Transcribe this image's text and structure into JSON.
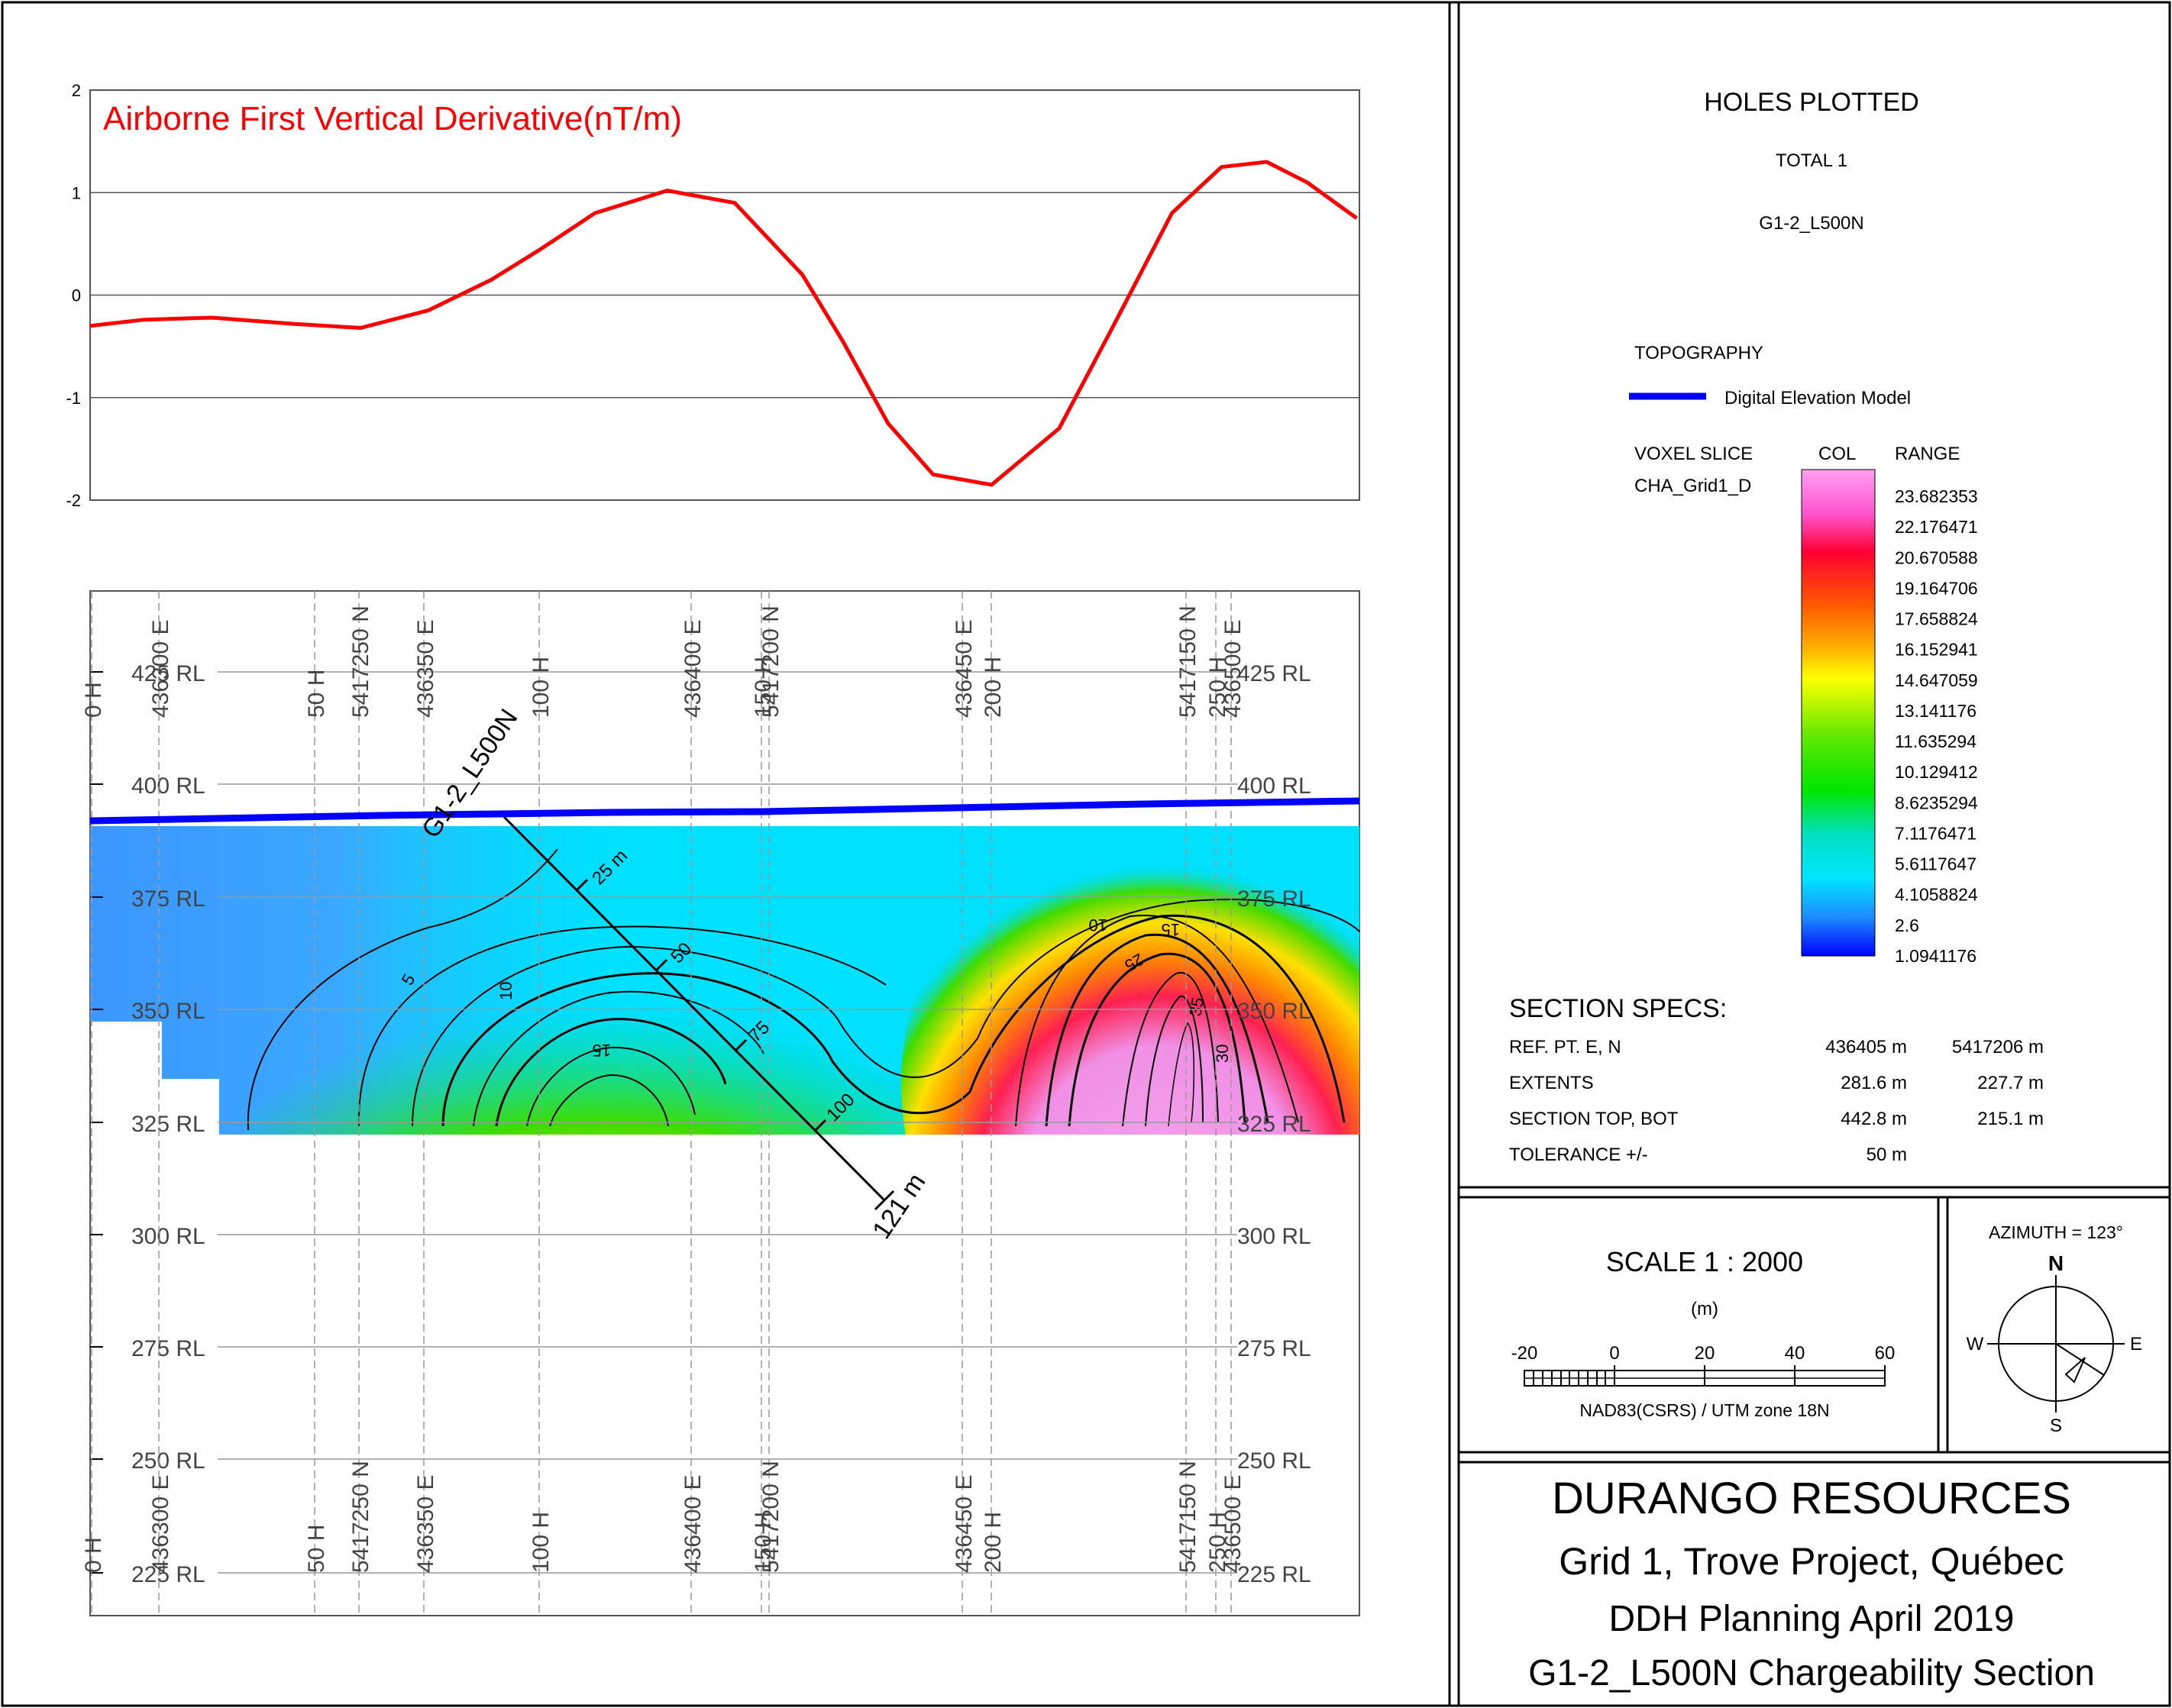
{
  "airborne": {
    "title": "Airborne First Vertical Derivative(nT/m)",
    "y_ticks": [
      "2",
      "1",
      "0",
      "-1",
      "-2"
    ],
    "line_color": "#ff0000"
  },
  "chart_data": {
    "type": "line",
    "title": "Airborne First Vertical Derivative(nT/m)",
    "ylim": [
      -2,
      2
    ],
    "xlim": [
      436300,
      436581.6
    ],
    "series": [
      {
        "x": [
          436300,
          436312,
          436327,
          436345,
          436360,
          436375,
          436389,
          436400,
          436412,
          436428,
          436443,
          436458,
          436467,
          436477,
          436487,
          436500,
          436515,
          436527,
          436540,
          436551,
          436561,
          436570,
          436581
        ],
        "values": [
          -0.3,
          -0.24,
          -0.22,
          -0.28,
          -0.32,
          -0.15,
          0.15,
          0.45,
          0.8,
          1.02,
          0.9,
          0.2,
          -0.45,
          -1.25,
          -1.75,
          -1.85,
          -1.3,
          -0.3,
          0.8,
          1.25,
          1.3,
          1.1,
          0.75
        ]
      }
    ]
  },
  "section": {
    "rl_labels": [
      "425 RL",
      "400 RL",
      "375 RL",
      "350 RL",
      "325 RL",
      "300 RL",
      "275 RL",
      "250 RL",
      "225 RL"
    ],
    "easting_labels": [
      "436300 E",
      "436350 E",
      "436400 E",
      "436450 E",
      "436500 E"
    ],
    "northing_labels": [
      "5417250 N",
      "5417200 N",
      "5417150 N"
    ],
    "chainage_labels": [
      "0 H",
      "50 H",
      "100 H",
      "150 H",
      "200 H",
      "250 H"
    ],
    "hole": {
      "name": "G1-2_L500N",
      "depth_label": "121 m",
      "ticks": [
        "25 m",
        "50",
        "75",
        "100"
      ]
    },
    "contour_labels": [
      "5",
      "10",
      "15",
      "10",
      "15",
      "25",
      "35",
      "30"
    ]
  },
  "legend": {
    "holes_title": "HOLES PLOTTED",
    "total": "TOTAL 1",
    "hole_name": "G1-2_L500N",
    "topography_title": "TOPOGRAPHY",
    "dem_label": "Digital Elevation Model",
    "dem_color": "#0000ff",
    "voxel_title": "VOXEL SLICE",
    "voxel_name": "CHA_Grid1_D",
    "col_header": "COL",
    "range_header": "RANGE",
    "ranges": [
      "23.682353",
      "22.176471",
      "20.670588",
      "19.164706",
      "17.658824",
      "16.152941",
      "14.647059",
      "13.141176",
      "11.635294",
      "10.129412",
      "8.6235294",
      "7.1176471",
      "5.6117647",
      "4.1058824",
      "2.6",
      "1.0941176"
    ]
  },
  "specs": {
    "title": "SECTION  SPECS:",
    "rows": [
      {
        "label": "REF. PT.  E, N",
        "v1": "436405 m",
        "v2": "5417206 m"
      },
      {
        "label": "EXTENTS",
        "v1": "281.6 m",
        "v2": "227.7 m"
      },
      {
        "label": "SECTION TOP, BOT",
        "v1": "442.8 m",
        "v2": "215.1 m"
      },
      {
        "label": "TOLERANCE  +/-",
        "v1": "50 m",
        "v2": ""
      }
    ]
  },
  "scale": {
    "title": "SCALE   1 : 2000",
    "unit": "(m)",
    "ticks": [
      "-20",
      "0",
      "20",
      "40",
      "60"
    ],
    "projection": "NAD83(CSRS) / UTM zone 18N"
  },
  "north": {
    "azimuth": "AZIMUTH = 123°",
    "n": "N",
    "s": "S",
    "e": "E",
    "w": "W"
  },
  "titleblock": {
    "company": "DURANGO RESOURCES",
    "project": "Grid 1, Trove Project, Québec",
    "subtitle": "DDH Planning April 2019",
    "section_title": "G1-2_L500N Chargeability Section"
  }
}
